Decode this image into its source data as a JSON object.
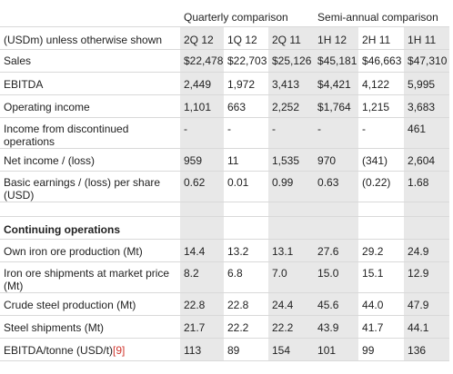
{
  "table": {
    "group_headers": [
      "Quarterly comparison",
      "Semi-annual comparison"
    ],
    "header": {
      "label": "(USDm) unless otherwise shown",
      "periods": [
        "2Q 12",
        "1Q 12",
        "2Q 11",
        "1H 12",
        "2H 11",
        "1H 11"
      ]
    },
    "rows": [
      {
        "label": "Sales",
        "values": [
          "$22,478",
          "$22,703",
          "$25,126",
          "$45,181",
          "$46,663",
          "$47,310"
        ]
      },
      {
        "label": "EBITDA",
        "values": [
          "2,449",
          "1,972",
          "3,413",
          "$4,421",
          "4,122",
          "5,995"
        ]
      },
      {
        "label": "Operating income",
        "values": [
          "1,101",
          "663",
          "2,252",
          "$1,764",
          "1,215",
          "3,683"
        ]
      },
      {
        "label": "Income from discontinued operations",
        "values": [
          "-",
          "-",
          "-",
          "-",
          "-",
          "461"
        ]
      },
      {
        "label": "Net income / (loss)",
        "values": [
          "959",
          "11",
          "1,535",
          "970",
          "(341)",
          "2,604"
        ]
      },
      {
        "label": "Basic earnings / (loss) per share (USD)",
        "values": [
          "0.62",
          "0.01",
          "0.99",
          "0.63",
          "(0.22)",
          "1.68"
        ]
      }
    ],
    "section_title": "Continuing operations",
    "continuing_rows": [
      {
        "label": "Own iron ore production (Mt)",
        "values": [
          "14.4",
          "13.2",
          "13.1",
          "27.6",
          "29.2",
          "24.9"
        ]
      },
      {
        "label": "Iron ore shipments at market price (Mt)",
        "values": [
          "8.2",
          "6.8",
          "7.0",
          "15.0",
          "15.1",
          "12.9"
        ]
      },
      {
        "label": "Crude steel production (Mt)",
        "values": [
          "22.8",
          "22.8",
          "24.4",
          "45.6",
          "44.0",
          "47.9"
        ]
      },
      {
        "label": "Steel shipments (Mt)",
        "values": [
          "21.7",
          "22.2",
          "22.2",
          "43.9",
          "41.7",
          "44.1"
        ]
      }
    ],
    "footer_row": {
      "label": "EBITDA/tonne (USD/t)",
      "ref": "[9]",
      "values": [
        "113",
        "89",
        "154",
        "101",
        "99",
        "136"
      ]
    }
  },
  "colors": {
    "shaded_column": "#e8e8e8",
    "divider": "#d9d9d9",
    "reference_link": "#d0342c"
  }
}
